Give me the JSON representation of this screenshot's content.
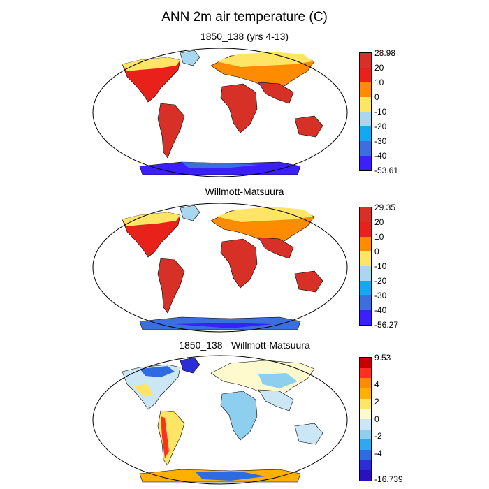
{
  "title": "ANN 2m air temperature (C)",
  "panels": [
    {
      "subtitle": "1850_138 (yrs 4-13)",
      "colorbar": {
        "colors": [
          "#d73027",
          "#e8211b",
          "#ff8c00",
          "#ffe566",
          "#a8d8f0",
          "#14a8f0",
          "#3b6fe0",
          "#3b1fff"
        ],
        "labels": [
          "28.98",
          "20",
          "10",
          "0",
          "-10",
          "-20",
          "-30",
          "-40",
          "-53.61"
        ]
      }
    },
    {
      "subtitle": "Willmott-Matsuura",
      "colorbar": {
        "colors": [
          "#d73027",
          "#e8211b",
          "#ff8c00",
          "#ffe566",
          "#a8d8f0",
          "#14a8f0",
          "#3b6fe0",
          "#3b1fff"
        ],
        "labels": [
          "29.35",
          "20",
          "10",
          "0",
          "-10",
          "-20",
          "-30",
          "-40",
          "-56.27"
        ]
      }
    },
    {
      "subtitle": "1850_138 - Willmott-Matsuura",
      "colorbar": {
        "colors": [
          "#c80000",
          "#ff3020",
          "#ff8c00",
          "#ffb000",
          "#ffe566",
          "#fffacd",
          "#cbe6f5",
          "#8ecff0",
          "#2ea8f0",
          "#2f6be0",
          "#2d2dd8",
          "#2b10c0"
        ],
        "labels": [
          "9.53",
          "4",
          "2",
          "0",
          "-2",
          "-4",
          "-16.739"
        ]
      }
    }
  ]
}
